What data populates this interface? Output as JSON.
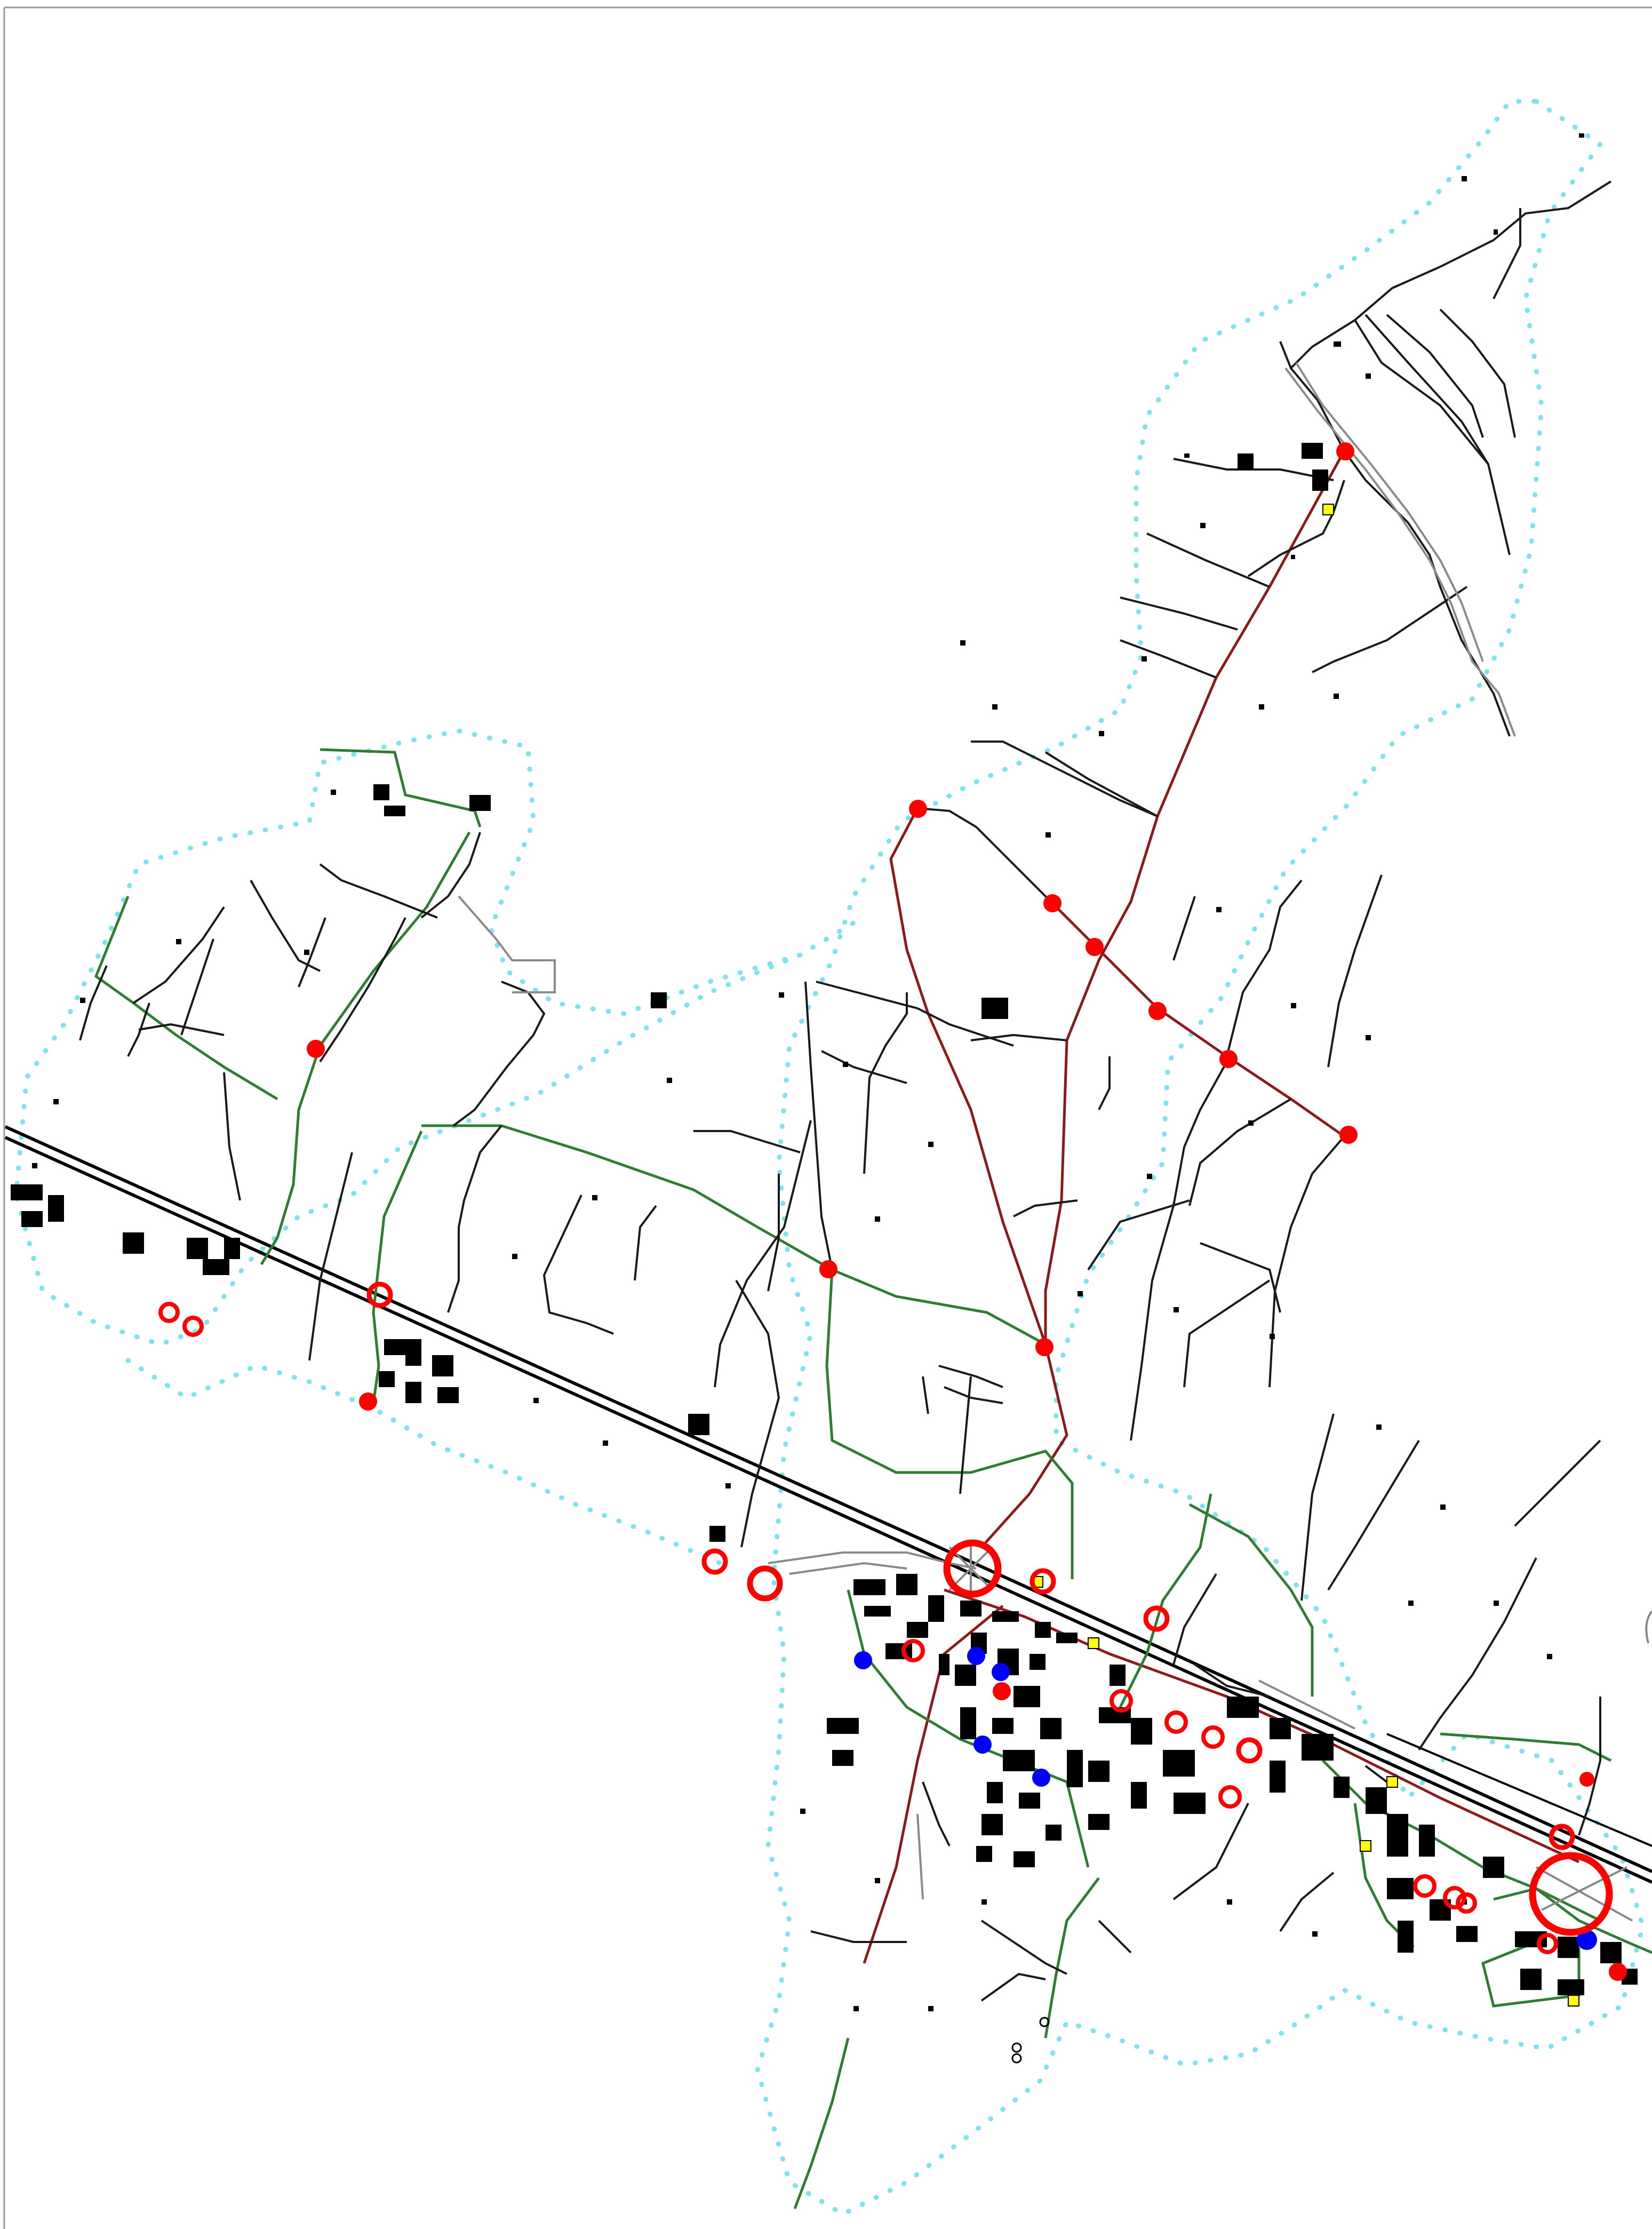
{
  "map": {
    "type": "utility-network-plan",
    "colors": {
      "background": "#ffffff",
      "road_main": "#8b1a1a",
      "road_secondary": "#2e7d32",
      "pipe_black": "#000000",
      "railway": "#000000",
      "boundary_dots": "#7fe3ee",
      "node_red": "#ff0000",
      "node_blue": "#0000ff",
      "highlight_yellow": "#ffff00",
      "road_gray": "#9a9a9a"
    },
    "legend_shown": false,
    "text_labels": []
  }
}
